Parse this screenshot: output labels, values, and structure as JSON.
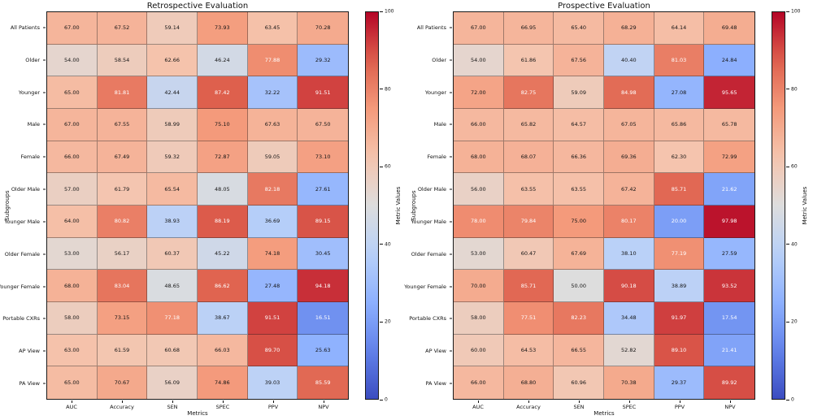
{
  "figure": {
    "background": "#ffffff"
  },
  "colormap": {
    "name": "coolwarm",
    "low": "#3B4CC0",
    "mid": "#DDDDDD",
    "high": "#B40426",
    "stops": [
      [
        0.0,
        59,
        76,
        192
      ],
      [
        0.125,
        98,
        130,
        234
      ],
      [
        0.25,
        141,
        176,
        254
      ],
      [
        0.375,
        184,
        208,
        249
      ],
      [
        0.5,
        221,
        221,
        221
      ],
      [
        0.625,
        245,
        196,
        173
      ],
      [
        0.75,
        244,
        154,
        123
      ],
      [
        0.875,
        222,
        96,
        77
      ],
      [
        1.0,
        180,
        4,
        38
      ]
    ]
  },
  "chart_data": [
    {
      "type": "heatmap",
      "title": "Retrospective Evaluation",
      "xlabel": "Metrics",
      "ylabel": "Subgroups",
      "colorbar_label": "Metric Values",
      "vmin": 0,
      "vmax": 100,
      "colorbar_ticks": [
        0,
        20,
        40,
        60,
        80,
        100
      ],
      "columns": [
        "AUC",
        "Accuracy",
        "SEN",
        "SPEC",
        "PPV",
        "NPV"
      ],
      "rows": [
        "All Patients",
        "Older",
        "Younger",
        "Male",
        "Female",
        "Older Male",
        "Younger Male",
        "Older Female",
        "Younger Female",
        "Portable CXRs",
        "AP View",
        "PA View"
      ],
      "values": [
        [
          "67.00",
          "67.52",
          "59.14",
          "73.93",
          "63.45",
          "70.28"
        ],
        [
          "54.00",
          "58.54",
          "62.66",
          "46.24",
          "77.88",
          "29.32"
        ],
        [
          "65.00",
          "81.81",
          "42.44",
          "87.42",
          "32.22",
          "91.51"
        ],
        [
          "67.00",
          "67.55",
          "58.99",
          "75.10",
          "67.63",
          "67.50"
        ],
        [
          "66.00",
          "67.49",
          "59.32",
          "72.87",
          "59.05",
          "73.10"
        ],
        [
          "57.00",
          "61.79",
          "65.54",
          "48.05",
          "82.18",
          "27.61"
        ],
        [
          "64.00",
          "80.82",
          "38.93",
          "88.19",
          "36.69",
          "89.15"
        ],
        [
          "53.00",
          "56.17",
          "60.37",
          "45.22",
          "74.18",
          "30.45"
        ],
        [
          "68.00",
          "83.04",
          "48.65",
          "86.62",
          "27.48",
          "94.18"
        ],
        [
          "58.00",
          "73.15",
          "77.18",
          "38.67",
          "91.51",
          "16.51"
        ],
        [
          "63.00",
          "61.59",
          "60.68",
          "66.03",
          "89.70",
          "25.63"
        ],
        [
          "65.00",
          "70.67",
          "56.09",
          "74.86",
          "39.03",
          "85.59"
        ]
      ]
    },
    {
      "type": "heatmap",
      "title": "Prospective Evaluation",
      "xlabel": "Metrics",
      "ylabel": "Subgroups",
      "colorbar_label": "Metric Values",
      "vmin": 0,
      "vmax": 100,
      "colorbar_ticks": [
        0,
        20,
        40,
        60,
        80,
        100
      ],
      "columns": [
        "AUC",
        "Accuracy",
        "SEN",
        "SPEC",
        "PPV",
        "NPV"
      ],
      "rows": [
        "All Patients",
        "Older",
        "Younger",
        "Male",
        "Female",
        "Older Male",
        "Younger Male",
        "Older Female",
        "Younger Female",
        "Portable CXRs",
        "AP View",
        "PA View"
      ],
      "values": [
        [
          "67.00",
          "66.95",
          "65.40",
          "68.29",
          "64.14",
          "69.48"
        ],
        [
          "54.00",
          "61.86",
          "67.56",
          "40.40",
          "81.03",
          "24.84"
        ],
        [
          "72.00",
          "82.75",
          "59.09",
          "84.98",
          "27.08",
          "95.65"
        ],
        [
          "66.00",
          "65.82",
          "64.57",
          "67.05",
          "65.86",
          "65.78"
        ],
        [
          "68.00",
          "68.07",
          "66.36",
          "69.36",
          "62.30",
          "72.99"
        ],
        [
          "56.00",
          "63.55",
          "63.55",
          "67.42",
          "85.71",
          "21.62"
        ],
        [
          "78.00",
          "79.84",
          "75.00",
          "80.17",
          "20.00",
          "97.98"
        ],
        [
          "53.00",
          "60.47",
          "67.69",
          "38.10",
          "77.19",
          "27.59"
        ],
        [
          "70.00",
          "85.71",
          "50.00",
          "90.18",
          "38.89",
          "93.52"
        ],
        [
          "58.00",
          "77.51",
          "82.23",
          "34.48",
          "91.97",
          "17.54"
        ],
        [
          "60.00",
          "64.53",
          "66.55",
          "52.82",
          "89.10",
          "21.41"
        ],
        [
          "66.00",
          "68.80",
          "60.96",
          "70.38",
          "29.37",
          "89.92"
        ]
      ]
    }
  ]
}
